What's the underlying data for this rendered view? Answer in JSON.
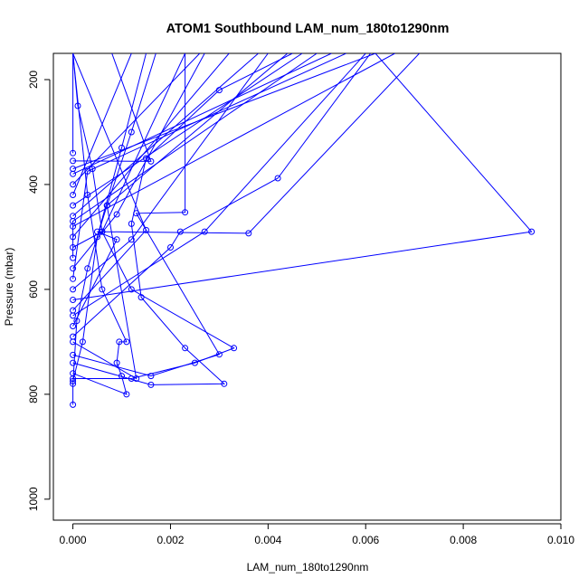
{
  "chart_data": {
    "type": "line",
    "title": "ATOM1 Southbound LAM_num_180to1290nm",
    "xlabel": "LAM_num_180to1290nm",
    "ylabel": "Pressure (mbar)",
    "xlim": [
      -0.0004,
      0.01
    ],
    "ylim": [
      1040,
      150
    ],
    "y_axis_inverted": true,
    "xticks": [
      0.0,
      0.002,
      0.004,
      0.006,
      0.008,
      0.01
    ],
    "xtick_labels": [
      "0.000",
      "0.002",
      "0.004",
      "0.006",
      "0.008",
      "0.010"
    ],
    "yticks": [
      200,
      400,
      600,
      800,
      1000
    ],
    "ytick_labels": [
      "200",
      "400",
      "600",
      "800",
      "1000"
    ],
    "grid": false,
    "series": [
      {
        "color": "#0000ff",
        "marker": "open-circle",
        "line": true,
        "profiles": [
          [
            [
              0.0,
              820
            ],
            [
              0.0,
              780
            ],
            [
              8e-05,
              660
            ],
            [
              0.0003,
              560
            ],
            [
              0.0007,
              440
            ],
            [
              0.0012,
              300
            ],
            [
              0.0017,
              150
            ]
          ],
          [
            [
              0.0,
              775
            ],
            [
              0.0002,
              700
            ],
            [
              0.0005,
              500
            ],
            [
              0.001,
              330
            ],
            [
              0.0015,
              150
            ]
          ],
          [
            [
              0.0,
              770
            ],
            [
              0.0012,
              770
            ],
            [
              0.0025,
              740
            ],
            [
              0.0033,
              712
            ],
            [
              0.0012,
              600
            ],
            [
              0.0006,
              490
            ],
            [
              0.0004,
              370
            ],
            [
              0.0001,
              250
            ],
            [
              0.0,
              150
            ]
          ],
          [
            [
              0.0,
              760
            ],
            [
              0.0011,
              800
            ],
            [
              0.001,
              765
            ],
            [
              0.0009,
              740
            ],
            [
              0.00095,
              700
            ],
            [
              0.0011,
              700
            ],
            [
              0.0006,
              600
            ],
            [
              0.0003,
              420
            ],
            [
              0.0,
              150
            ]
          ],
          [
            [
              0.0,
              740
            ],
            [
              0.0016,
              782
            ],
            [
              0.0031,
              780
            ],
            [
              0.0023,
              712
            ],
            [
              0.0014,
              615
            ],
            [
              0.0012,
              475
            ],
            [
              0.0015,
              350
            ],
            [
              0.003,
              220
            ],
            [
              0.0045,
              150
            ]
          ],
          [
            [
              0.0,
              725
            ],
            [
              0.0016,
              765
            ],
            [
              0.003,
              724
            ],
            [
              0.0013,
              455
            ],
            [
              0.0023,
              453
            ],
            [
              0.0023,
              150
            ]
          ],
          [
            [
              0.0,
              700
            ],
            [
              0.0013,
              770
            ],
            [
              0.0007,
              440
            ],
            [
              0.0044,
              150
            ]
          ],
          [
            [
              0.0,
              690
            ],
            [
              0.002,
              520
            ],
            [
              0.0022,
              490
            ],
            [
              0.0042,
              388
            ],
            [
              0.0061,
              150
            ]
          ],
          [
            [
              0.0,
              670
            ],
            [
              0.0009,
              505
            ],
            [
              0.0005,
              490
            ],
            [
              0.0036,
              493
            ],
            [
              0.0071,
              150
            ]
          ],
          [
            [
              0.0,
              650
            ],
            [
              0.0027,
              490
            ],
            [
              0.006,
              150
            ]
          ],
          [
            [
              0.0,
              640
            ],
            [
              0.0015,
              487
            ],
            [
              0.0,
              150
            ]
          ],
          [
            [
              0.0,
              620
            ],
            [
              0.0094,
              490
            ],
            [
              0.0062,
              150
            ],
            [
              0.0,
              370
            ]
          ],
          [
            [
              0.0,
              600
            ],
            [
              0.0012,
              505
            ],
            [
              0.004,
              150
            ]
          ],
          [
            [
              0.0,
              580
            ],
            [
              0.0003,
              375
            ],
            [
              0.0056,
              150
            ]
          ],
          [
            [
              0.0,
              560
            ],
            [
              0.0009,
              457
            ],
            [
              0.0027,
              150
            ]
          ],
          [
            [
              0.0,
              540
            ],
            [
              0.0,
              470
            ],
            [
              0.005,
              150
            ]
          ],
          [
            [
              0.0,
              520
            ],
            [
              0.0006,
              490
            ],
            [
              0.0023,
              150
            ]
          ],
          [
            [
              0.0,
              500
            ],
            [
              0.0032,
              150
            ]
          ],
          [
            [
              0.0,
              480
            ],
            [
              0.0066,
              150
            ]
          ],
          [
            [
              0.0,
              460
            ],
            [
              0.0038,
              150
            ]
          ],
          [
            [
              0.0,
              440
            ],
            [
              0.0047,
              150
            ]
          ],
          [
            [
              0.0,
              420
            ],
            [
              0.0012,
              150
            ]
          ],
          [
            [
              0.0,
              400
            ],
            [
              0.0026,
              150
            ]
          ],
          [
            [
              0.0,
              380
            ],
            [
              0.0053,
              150
            ]
          ],
          [
            [
              0.0,
              355
            ],
            [
              0.0016,
              356
            ],
            [
              0.0008,
              150
            ]
          ],
          [
            [
              0.0,
              340
            ],
            [
              0.0,
              150
            ]
          ]
        ]
      }
    ]
  }
}
